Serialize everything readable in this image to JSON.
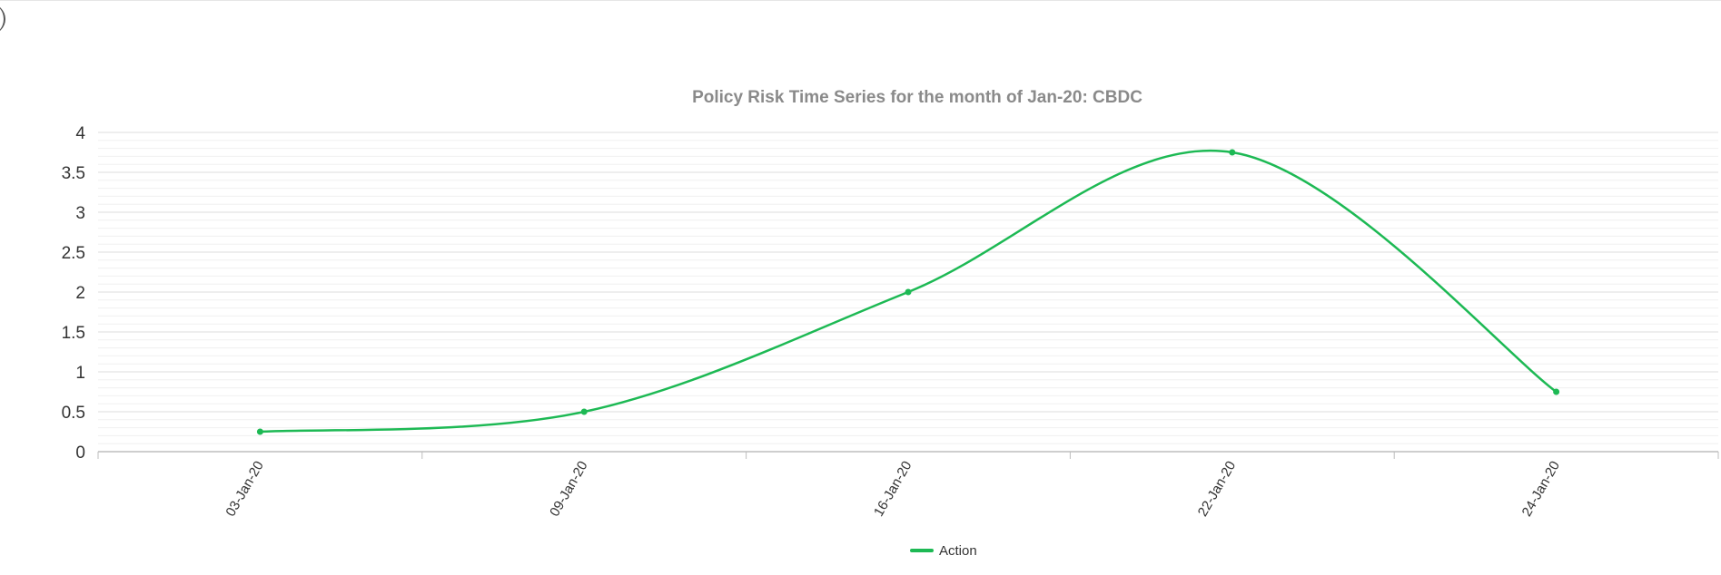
{
  "chart_data": {
    "type": "line",
    "title": "Policy Risk Time Series for the month of Jan-20: CBDC",
    "xlabel": "",
    "ylabel": "",
    "categories": [
      "03-Jan-20",
      "09-Jan-20",
      "16-Jan-20",
      "22-Jan-20",
      "24-Jan-20"
    ],
    "series": [
      {
        "name": "Action",
        "values": [
          0.25,
          0.5,
          2,
          3.75,
          0.75
        ],
        "color": "#1db954"
      }
    ],
    "ylim": [
      0,
      4
    ],
    "yticks": [
      "0",
      "0.5",
      "1",
      "1.5",
      "2",
      "2.5",
      "3",
      "3.5",
      "4"
    ],
    "grid": true,
    "smooth": true,
    "legend": "bottom-center"
  },
  "colors": {
    "series": "#1db954",
    "title": "#8a8a8a",
    "major_grid": "#dedede",
    "minor_grid": "#f0f0f0",
    "axis": "#bdbdbd",
    "text": "#333333"
  }
}
